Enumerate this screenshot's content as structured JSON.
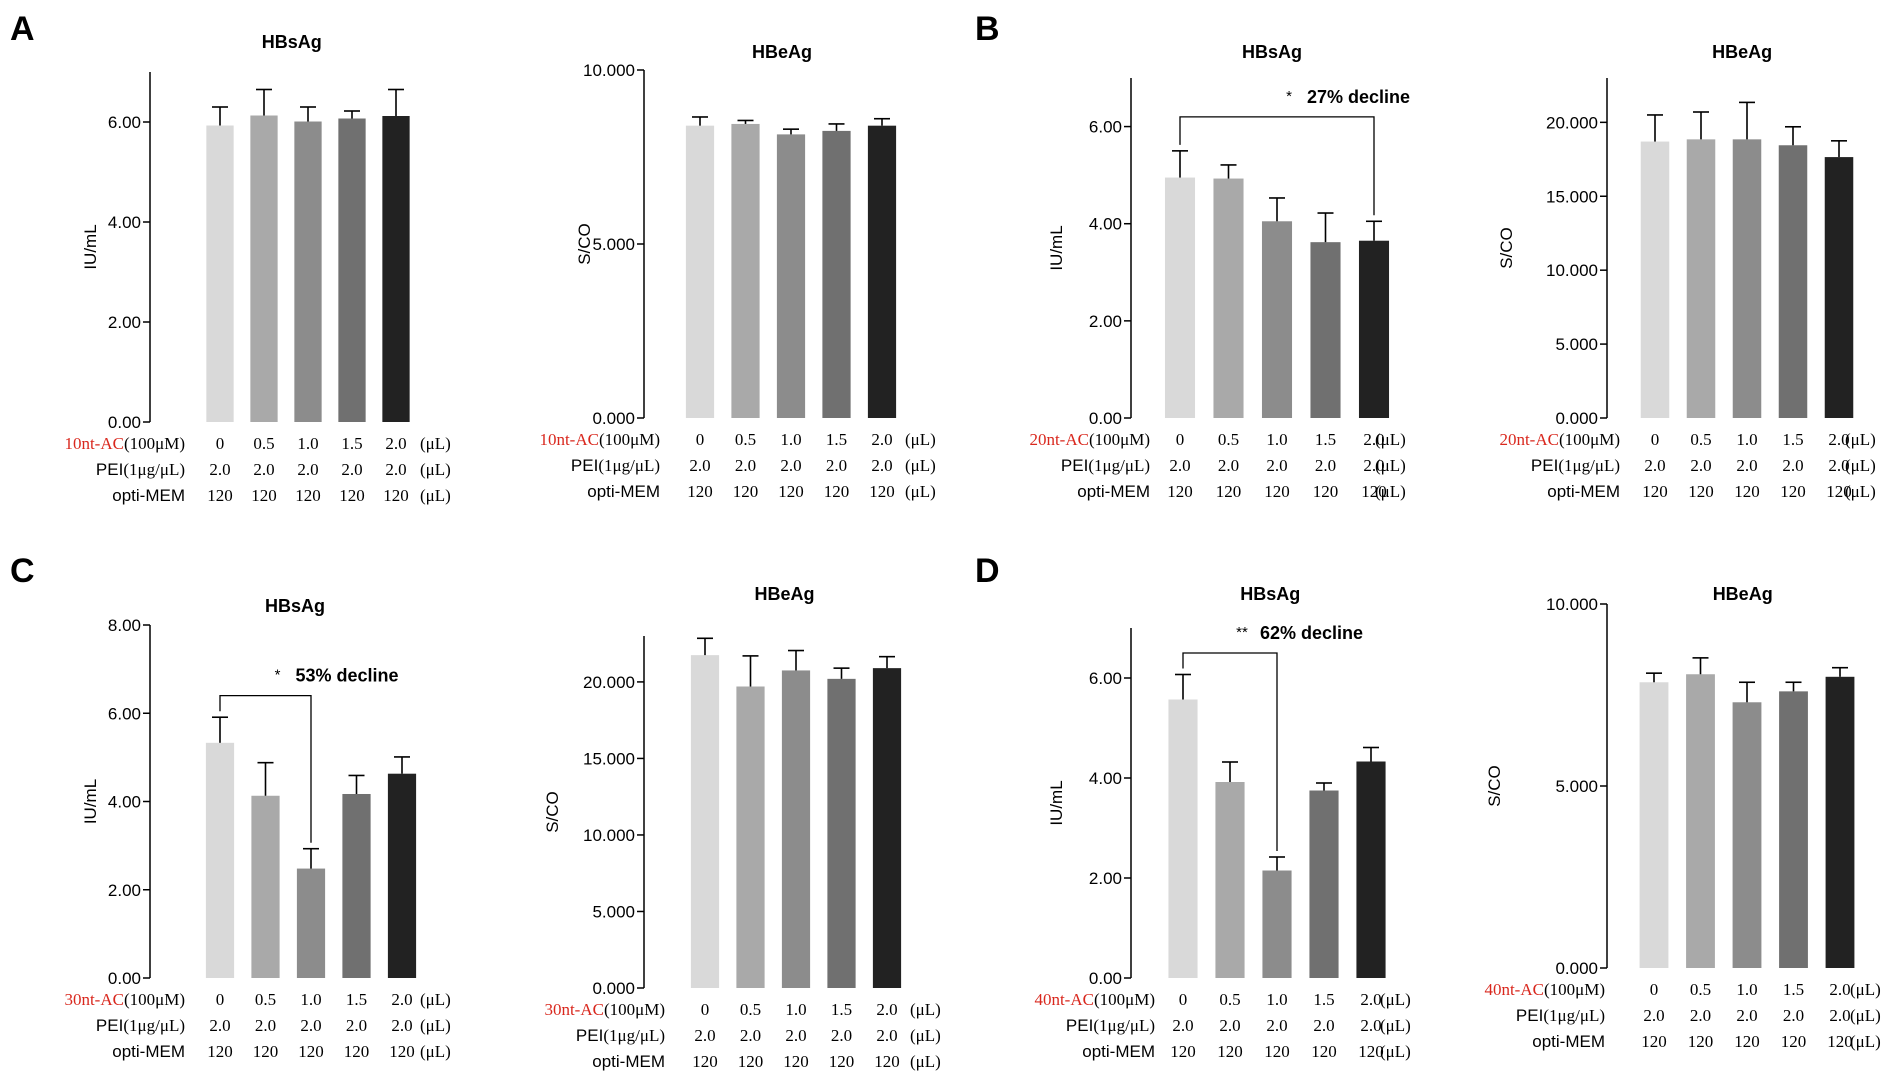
{
  "figure": {
    "panel_letters": [
      "A",
      "B",
      "C",
      "D"
    ],
    "colors": {
      "bars": [
        "#d9d9d9",
        "#a9a9a9",
        "#8c8c8c",
        "#707070",
        "#222222"
      ],
      "highlight": "#d9281e",
      "axis": "#000000"
    },
    "row_labels": {
      "peI": "PEI",
      "peI_unit": "(1μg/μL)",
      "opti": "opti-MEM",
      "ac_unit": "(100μM)"
    },
    "doses": [
      "0",
      "0.5",
      "1.0",
      "1.5",
      "2.0"
    ],
    "pei_values": [
      "2.0",
      "2.0",
      "2.0",
      "2.0",
      "2.0"
    ],
    "opti_values": [
      "120",
      "120",
      "120",
      "120",
      "120"
    ],
    "unit_suffix": "(μL)"
  },
  "chart_data": [
    {
      "panel": "A",
      "type": "bar",
      "title": "HBsAg",
      "ylabel": "IU/mL",
      "ac_label": "10nt-AC",
      "categories": [
        "0",
        "0.5",
        "1.0",
        "1.5",
        "2.0"
      ],
      "values": [
        5.93,
        6.13,
        6.01,
        6.07,
        6.12
      ],
      "errors": [
        0.37,
        0.52,
        0.29,
        0.15,
        0.53
      ],
      "ylim": [
        0,
        7.0
      ],
      "yticks": [
        "0.00",
        "2.00",
        "4.00",
        "6.00"
      ],
      "ytick_values": [
        0,
        2,
        4,
        6
      ],
      "annotation": null
    },
    {
      "panel": "A",
      "type": "bar",
      "title": "HBeAg",
      "ylabel": "S/CO",
      "ac_label": "10nt-AC",
      "categories": [
        "0",
        "0.5",
        "1.0",
        "1.5",
        "2.0"
      ],
      "values": [
        8.4,
        8.45,
        8.15,
        8.25,
        8.4
      ],
      "errors": [
        0.25,
        0.1,
        0.15,
        0.2,
        0.2
      ],
      "ylim": [
        0,
        10.0
      ],
      "yticks": [
        "0.000",
        "5.000",
        "10.000"
      ],
      "ytick_values": [
        0,
        5,
        10
      ],
      "annotation": null
    },
    {
      "panel": "B",
      "type": "bar",
      "title": "HBsAg",
      "ylabel": "IU/mL",
      "ac_label": "20nt-AC",
      "categories": [
        "0",
        "0.5",
        "1.0",
        "1.5",
        "2.0"
      ],
      "values": [
        4.95,
        4.93,
        4.05,
        3.62,
        3.65
      ],
      "errors": [
        0.55,
        0.28,
        0.48,
        0.6,
        0.4
      ],
      "ylim": [
        0,
        7.0
      ],
      "yticks": [
        "0.00",
        "2.00",
        "4.00",
        "6.00"
      ],
      "ytick_values": [
        0,
        2,
        4,
        6
      ],
      "annotation": {
        "from": 0,
        "to": 4,
        "stars": "*",
        "text": "27% decline",
        "y": 6.2
      }
    },
    {
      "panel": "B",
      "type": "bar",
      "title": "HBeAg",
      "ylabel": "S/CO",
      "ac_label": "20nt-AC",
      "categories": [
        "0",
        "0.5",
        "1.0",
        "1.5",
        "2.0"
      ],
      "values": [
        18.7,
        18.85,
        18.85,
        18.45,
        17.65
      ],
      "errors": [
        1.8,
        1.85,
        2.5,
        1.25,
        1.1
      ],
      "ylim": [
        0,
        23.0
      ],
      "yticks": [
        "0.000",
        "5.000",
        "10.000",
        "15.000",
        "20.000"
      ],
      "ytick_values": [
        0,
        5,
        10,
        15,
        20
      ],
      "annotation": null
    },
    {
      "panel": "C",
      "type": "bar",
      "title": "HBsAg",
      "ylabel": "IU/mL",
      "ac_label": "30nt-AC",
      "categories": [
        "0",
        "0.5",
        "1.0",
        "1.5",
        "2.0"
      ],
      "values": [
        5.33,
        4.13,
        2.48,
        4.17,
        4.63
      ],
      "errors": [
        0.58,
        0.75,
        0.45,
        0.42,
        0.38
      ],
      "ylim": [
        0,
        8.0
      ],
      "yticks": [
        "0.00",
        "2.00",
        "4.00",
        "6.00",
        "8.00"
      ],
      "ytick_values": [
        0,
        2,
        4,
        6,
        8
      ],
      "annotation": {
        "from": 0,
        "to": 2,
        "stars": "*",
        "text": "53% decline",
        "y": 6.4
      }
    },
    {
      "panel": "C",
      "type": "bar",
      "title": "HBeAg",
      "ylabel": "S/CO",
      "ac_label": "30nt-AC",
      "categories": [
        "0",
        "0.5",
        "1.0",
        "1.5",
        "2.0"
      ],
      "values": [
        21.75,
        19.7,
        20.75,
        20.2,
        20.9
      ],
      "errors": [
        1.1,
        2.0,
        1.3,
        0.7,
        0.75
      ],
      "ylim": [
        0,
        23.0
      ],
      "yticks": [
        "0.000",
        "5.000",
        "10.000",
        "15.000",
        "20.000"
      ],
      "ytick_values": [
        0,
        5,
        10,
        15,
        20
      ],
      "annotation": null
    },
    {
      "panel": "D",
      "type": "bar",
      "title": "HBsAg",
      "ylabel": "IU/mL",
      "ac_label": "40nt-AC",
      "categories": [
        "0",
        "0.5",
        "1.0",
        "1.5",
        "2.0"
      ],
      "values": [
        5.57,
        3.92,
        2.15,
        3.75,
        4.33
      ],
      "errors": [
        0.5,
        0.4,
        0.27,
        0.15,
        0.28
      ],
      "ylim": [
        0,
        7.0
      ],
      "yticks": [
        "0.00",
        "2.00",
        "4.00",
        "6.00"
      ],
      "ytick_values": [
        0,
        2,
        4,
        6
      ],
      "annotation": {
        "from": 0,
        "to": 2,
        "stars": "**",
        "text": "62% decline",
        "y": 6.5
      }
    },
    {
      "panel": "D",
      "type": "bar",
      "title": "HBeAg",
      "ylabel": "S/CO",
      "ac_label": "40nt-AC",
      "categories": [
        "0",
        "0.5",
        "1.0",
        "1.5",
        "2.0"
      ],
      "values": [
        7.85,
        8.07,
        7.3,
        7.6,
        8.0
      ],
      "errors": [
        0.25,
        0.45,
        0.55,
        0.25,
        0.25
      ],
      "ylim": [
        0,
        10.0
      ],
      "yticks": [
        "0.000",
        "5.000",
        "10.000"
      ],
      "ytick_values": [
        0,
        5,
        10
      ],
      "annotation": null
    }
  ]
}
